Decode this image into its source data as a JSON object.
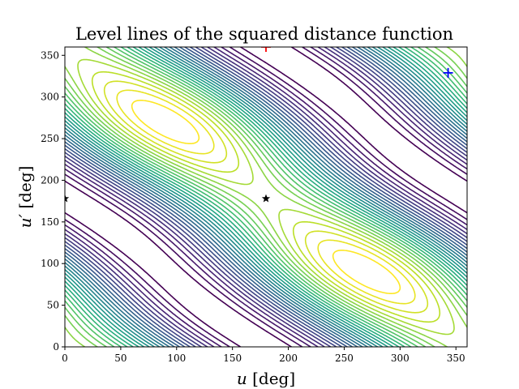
{
  "chart_data": {
    "type": "contour",
    "title": "Level lines of the squared distance function",
    "xlabel_var": "u",
    "xlabel_unit": "[deg]",
    "ylabel_var": "u′",
    "ylabel_unit": "[deg]",
    "xlim": [
      0,
      360
    ],
    "ylim": [
      0,
      360
    ],
    "xticks": [
      0,
      50,
      100,
      150,
      200,
      250,
      300,
      350
    ],
    "yticks": [
      0,
      50,
      100,
      150,
      200,
      250,
      300,
      350
    ],
    "colormap": "viridis",
    "levels": 30,
    "grid": false,
    "markers": [
      {
        "symbol": "+",
        "color": "#ff0000",
        "x": 180,
        "y": 360
      },
      {
        "symbol": "+",
        "color": "#0000ff",
        "x": 343,
        "y": 329
      },
      {
        "symbol": "star",
        "color": "#000000",
        "x": 0,
        "y": 178
      },
      {
        "symbol": "star",
        "color": "#000000",
        "x": 180,
        "y": 178
      }
    ]
  }
}
